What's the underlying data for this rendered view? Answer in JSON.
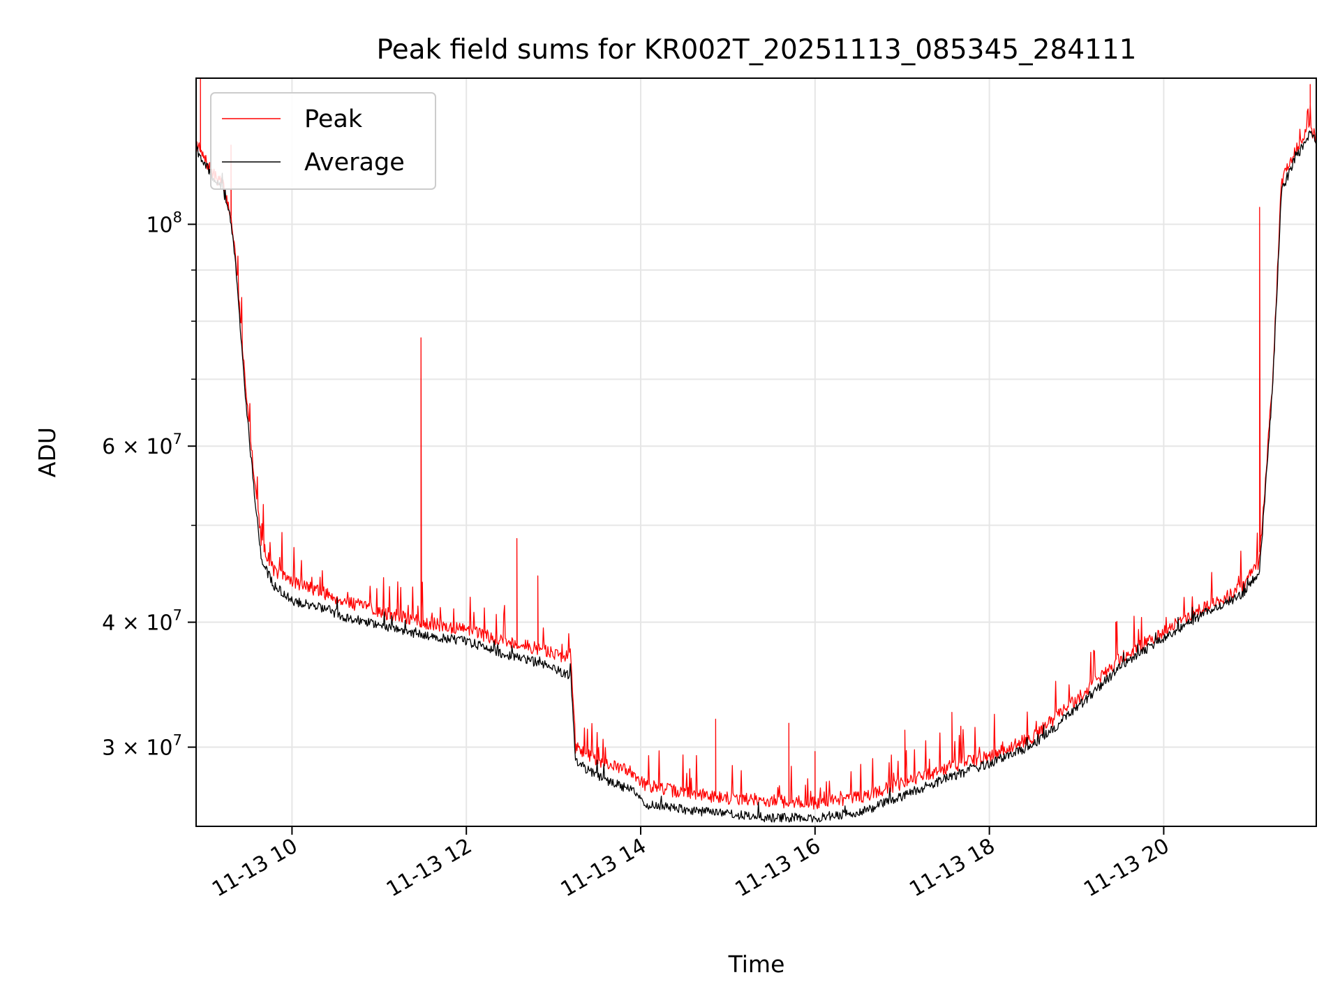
{
  "chart_data": {
    "type": "line",
    "title": "Peak field sums for KR002T_20251113_085345_284111",
    "xlabel": "Time",
    "ylabel": "ADU",
    "yscale": "log",
    "xlim": [
      8.9,
      21.75
    ],
    "ylim": [
      25000000,
      140000000
    ],
    "grid": true,
    "legend_position": "top-left",
    "x_unit": "hours since 11-13 00:00",
    "x_ticks": [
      {
        "value": 10,
        "label": "11-13 10"
      },
      {
        "value": 12,
        "label": "11-13 12"
      },
      {
        "value": 14,
        "label": "11-13 14"
      },
      {
        "value": 16,
        "label": "11-13 16"
      },
      {
        "value": 18,
        "label": "11-13 18"
      },
      {
        "value": 20,
        "label": "11-13 20"
      }
    ],
    "y_major_ticks": [
      {
        "value": 100000000,
        "base": "10",
        "exp": "8"
      },
      {
        "value": 60000000,
        "base": "6 × 10",
        "exp": "7"
      },
      {
        "value": 40000000,
        "base": "4 × 10",
        "exp": "7"
      },
      {
        "value": 30000000,
        "base": "3 × 10",
        "exp": "7"
      }
    ],
    "y_minor_ticks": [
      50000000,
      70000000,
      80000000,
      90000000
    ],
    "series": [
      {
        "name": "Peak",
        "color": "#ff0000",
        "x": [
          8.9,
          8.95,
          9.0,
          9.1,
          9.2,
          9.3,
          9.35,
          9.45,
          9.55,
          9.65,
          9.8,
          10.0,
          10.3,
          10.6,
          11.0,
          11.5,
          12.0,
          12.5,
          12.9,
          13.2,
          13.25,
          13.3,
          13.6,
          13.9,
          14.05,
          14.5,
          15.0,
          15.5,
          16.0,
          16.5,
          17.0,
          17.5,
          18.0,
          18.5,
          19.0,
          19.5,
          20.0,
          20.5,
          20.9,
          21.1,
          21.25,
          21.35,
          21.5,
          21.6,
          21.68,
          21.75
        ],
        "values": [
          121000000,
          118000000,
          116000000,
          112000000,
          110000000,
          102000000,
          93000000,
          72000000,
          58000000,
          48000000,
          45000000,
          44000000,
          43000000,
          42000000,
          41000000,
          40000000,
          39300000,
          38200000,
          37500000,
          36800000,
          30000000,
          29800000,
          28800000,
          28400000,
          27500000,
          27000000,
          26700000,
          26500000,
          26400000,
          26700000,
          27600000,
          28600000,
          29400000,
          30700000,
          33500000,
          36800000,
          39200000,
          41500000,
          43300000,
          46000000,
          70000000,
          110000000,
          118000000,
          122000000,
          125000000,
          122000000
        ],
        "spikes": [
          {
            "x": 8.95,
            "y": 140000000
          },
          {
            "x": 9.3,
            "y": 120000000
          },
          {
            "x": 11.48,
            "y": 77000000
          },
          {
            "x": 12.58,
            "y": 48500000
          },
          {
            "x": 12.82,
            "y": 44500000
          },
          {
            "x": 14.86,
            "y": 32000000
          },
          {
            "x": 15.7,
            "y": 31700000
          },
          {
            "x": 16.0,
            "y": 29700000
          },
          {
            "x": 17.03,
            "y": 31200000
          },
          {
            "x": 17.57,
            "y": 32500000
          },
          {
            "x": 19.45,
            "y": 40000000
          },
          {
            "x": 21.1,
            "y": 104000000
          },
          {
            "x": 21.68,
            "y": 138000000
          }
        ]
      },
      {
        "name": "Average",
        "color": "#000000",
        "x": [
          8.9,
          8.95,
          9.0,
          9.1,
          9.2,
          9.3,
          9.35,
          9.45,
          9.55,
          9.65,
          9.8,
          10.0,
          10.3,
          10.6,
          11.0,
          11.5,
          12.0,
          12.5,
          12.9,
          13.2,
          13.25,
          13.3,
          13.6,
          13.9,
          14.05,
          14.5,
          15.0,
          15.5,
          16.0,
          16.5,
          17.0,
          17.5,
          18.0,
          18.5,
          19.0,
          19.5,
          20.0,
          20.5,
          20.9,
          21.1,
          21.25,
          21.35,
          21.5,
          21.6,
          21.68,
          21.75
        ],
        "values": [
          120000000,
          116000000,
          115000000,
          111000000,
          109000000,
          101000000,
          92000000,
          70000000,
          56000000,
          46000000,
          43500000,
          42000000,
          41500000,
          40500000,
          39800000,
          38800000,
          38300000,
          37000000,
          36300000,
          35300000,
          29000000,
          28800000,
          27800000,
          27200000,
          26300000,
          26000000,
          25700000,
          25500000,
          25500000,
          25800000,
          26800000,
          27900000,
          28900000,
          30100000,
          32800000,
          36100000,
          38600000,
          41000000,
          42600000,
          45000000,
          69000000,
          108000000,
          116000000,
          120000000,
          123000000,
          121000000
        ]
      }
    ]
  }
}
